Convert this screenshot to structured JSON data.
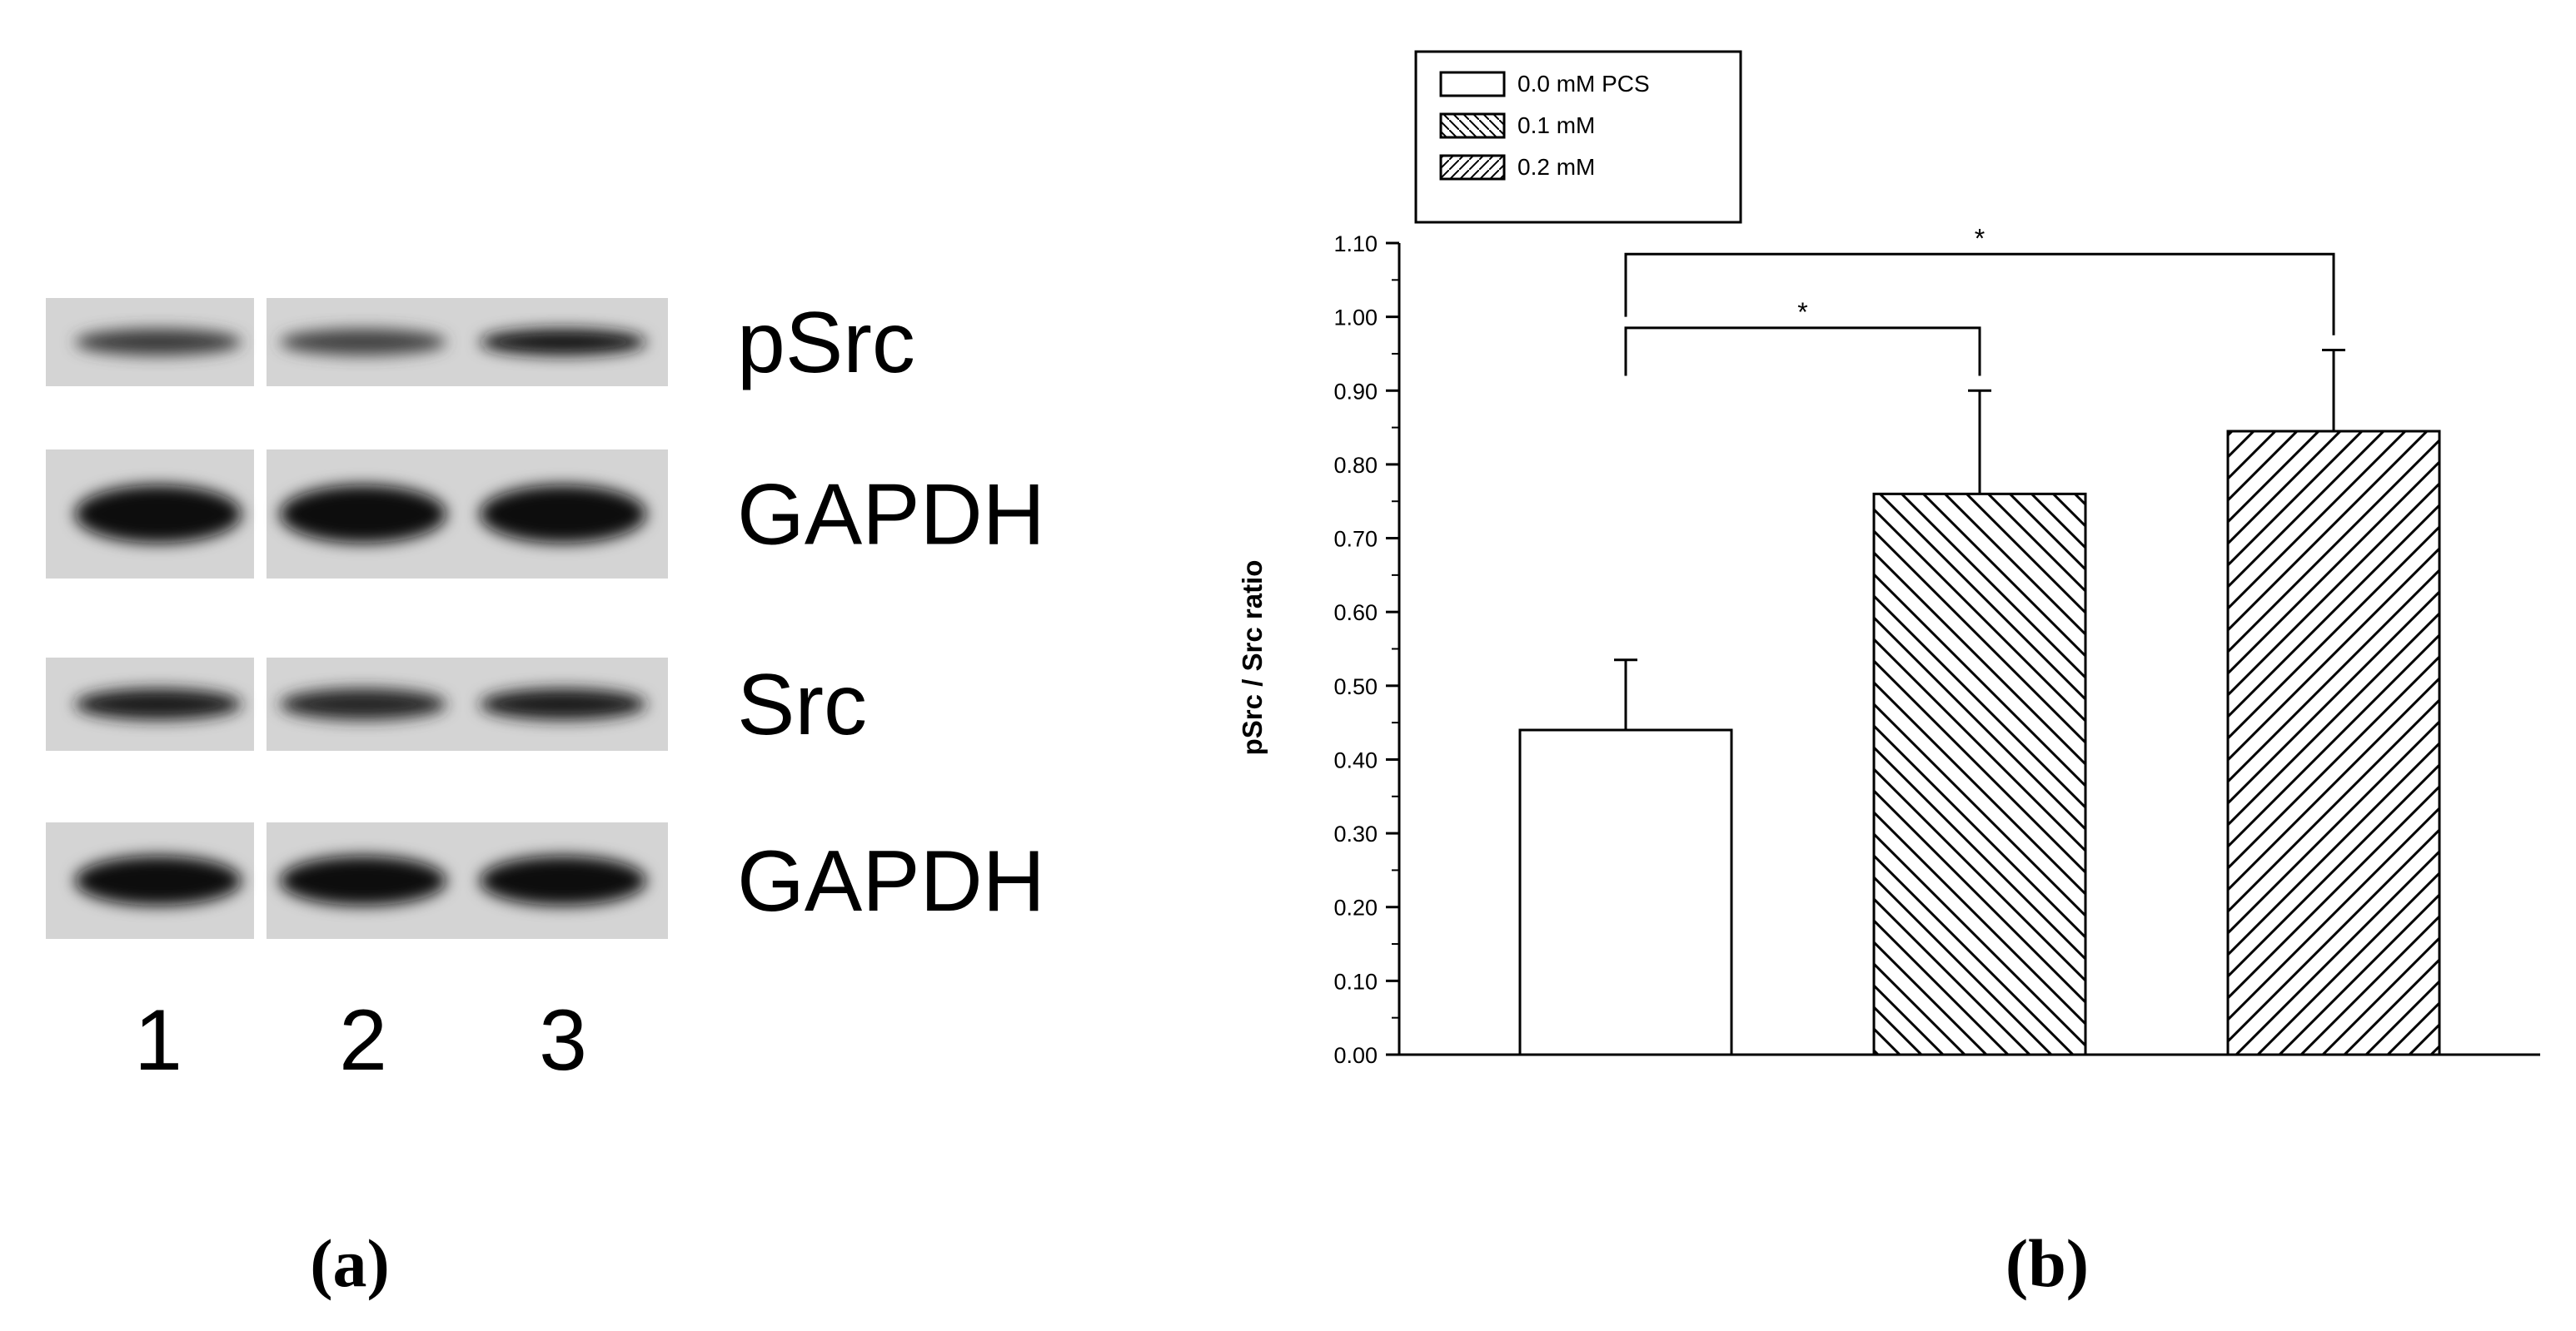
{
  "blot": {
    "bands": [
      {
        "label": "pSrc",
        "intensities": [
          0.75,
          0.7,
          0.95
        ]
      },
      {
        "label": "GAPDH",
        "intensities": [
          1.0,
          1.0,
          1.0
        ]
      },
      {
        "label": "Src",
        "intensities": [
          0.9,
          0.85,
          0.9
        ]
      },
      {
        "label": "GAPDH",
        "intensities": [
          1.0,
          1.0,
          1.0
        ]
      }
    ],
    "lanes": [
      "1",
      "2",
      "3"
    ]
  },
  "panel_labels": {
    "a": "(a)",
    "b": "(b)"
  },
  "chart_data": {
    "type": "bar",
    "categories": [
      "0.0 mM PCS",
      "0.1 mM",
      "0.2 mM"
    ],
    "values": [
      0.44,
      0.76,
      0.845
    ],
    "errors": [
      0.095,
      0.14,
      0.11
    ],
    "patterns": [
      "none",
      "backslash",
      "slash"
    ],
    "ylabel": "pSrc / Src ratio",
    "xlabel": "",
    "ylim": [
      0,
      1.1
    ],
    "yticks": [
      "0.00",
      "0.10",
      "0.20",
      "0.30",
      "0.40",
      "0.50",
      "0.60",
      "0.70",
      "0.80",
      "0.90",
      "1.00",
      "1.10"
    ],
    "legend": {
      "placement": "top-left",
      "entries": [
        "0.0 mM PCS",
        "0.1 mM",
        "0.2 mM"
      ]
    },
    "significance": [
      {
        "from": 0,
        "to": 1,
        "label": "*"
      },
      {
        "from": 0,
        "to": 2,
        "label": "*"
      }
    ]
  }
}
